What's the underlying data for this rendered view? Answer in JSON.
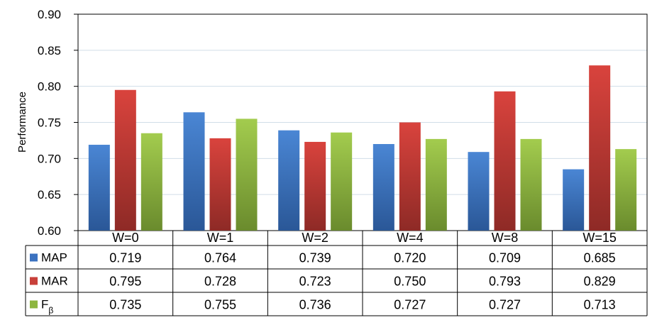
{
  "chart_data": {
    "type": "bar",
    "ylabel": "Performance",
    "xlabel": "",
    "ylim": [
      0.6,
      0.9
    ],
    "yticks": [
      "0.60",
      "0.65",
      "0.70",
      "0.75",
      "0.80",
      "0.85",
      "0.90"
    ],
    "grid": true,
    "legend": "data-table-left",
    "categories": [
      "W=0",
      "W=1",
      "W=2",
      "W=4",
      "W=8",
      "W=15"
    ],
    "series": [
      {
        "name": "MAP",
        "color": "#3b72c0",
        "values": [
          0.719,
          0.764,
          0.739,
          0.72,
          0.709,
          0.685
        ],
        "labels": [
          "0.719",
          "0.764",
          "0.739",
          "0.720",
          "0.709",
          "0.685"
        ]
      },
      {
        "name": "MAR",
        "color": "#c8403a",
        "values": [
          0.795,
          0.728,
          0.723,
          0.75,
          0.793,
          0.829
        ],
        "labels": [
          "0.795",
          "0.728",
          "0.723",
          "0.750",
          "0.793",
          "0.829"
        ]
      },
      {
        "name": "F",
        "name_sub": "β",
        "color": "#8db63f",
        "values": [
          0.735,
          0.755,
          0.736,
          0.727,
          0.727,
          0.713
        ],
        "labels": [
          "0.735",
          "0.755",
          "0.736",
          "0.727",
          "0.727",
          "0.713"
        ]
      }
    ]
  }
}
